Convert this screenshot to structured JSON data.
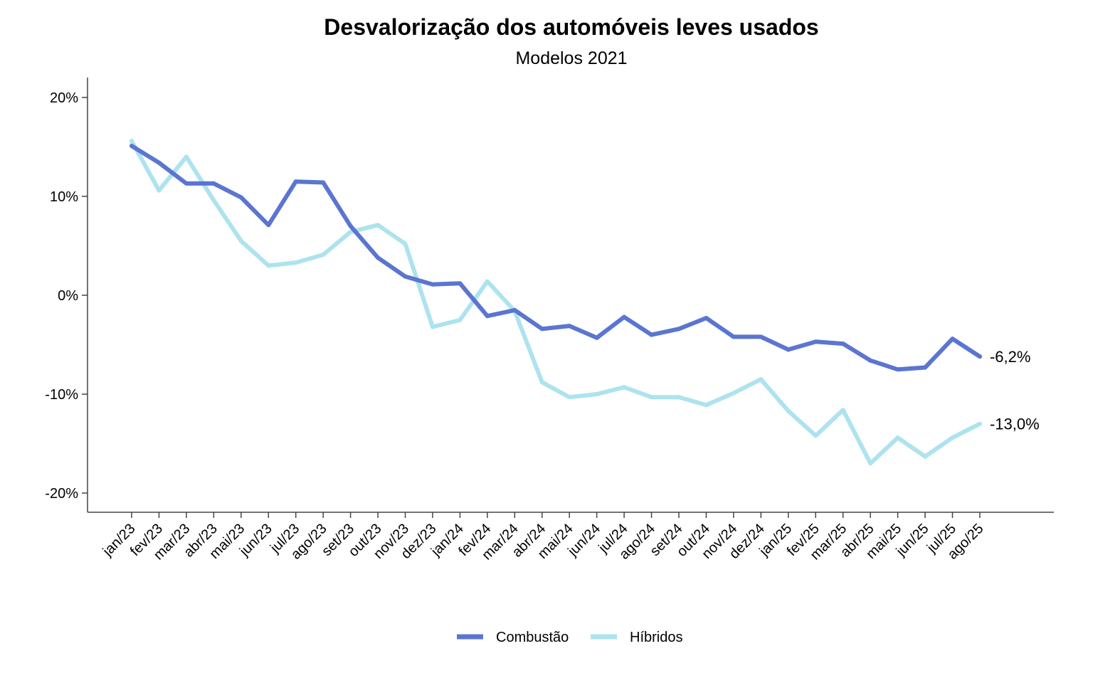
{
  "chart_data": {
    "type": "line",
    "title": "Desvalorização dos automóveis leves usados",
    "subtitle": "Modelos 2021",
    "xlabel": "",
    "ylabel": "",
    "ylim": [
      -22,
      22
    ],
    "y_ticks": [
      20,
      10,
      0,
      -10,
      -20
    ],
    "y_tick_labels": [
      "20%",
      "10%",
      "0%",
      "-10%",
      "-20%"
    ],
    "grid": false,
    "legend_position": "bottom-center",
    "categories": [
      "jan/23",
      "fev/23",
      "mar/23",
      "abr/23",
      "mai/23",
      "jun/23",
      "jul/23",
      "ago/23",
      "set/23",
      "out/23",
      "nov/23",
      "dez/23",
      "jan/24",
      "fev/24",
      "mar/24",
      "abr/24",
      "mai/24",
      "jun/24",
      "jul/24",
      "ago/24",
      "set/24",
      "out/24",
      "nov/24",
      "dez/24",
      "jan/25",
      "fev/25",
      "mar/25",
      "abr/25",
      "mai/25",
      "jun/25",
      "jul/25",
      "ago/25"
    ],
    "series": [
      {
        "name": "Combustão",
        "color": "#5B75D0",
        "end_label": "-6,2%",
        "values": [
          15.1,
          13.4,
          11.3,
          11.3,
          9.9,
          7.1,
          11.5,
          11.4,
          7.0,
          3.8,
          1.9,
          1.1,
          1.2,
          -2.1,
          -1.5,
          -3.4,
          -3.1,
          -4.3,
          -2.2,
          -4.0,
          -3.4,
          -2.3,
          -4.2,
          -4.2,
          -5.5,
          -4.7,
          -4.9,
          -6.6,
          -7.5,
          -7.3,
          -4.4,
          -6.2
        ]
      },
      {
        "name": "Híbridos",
        "color": "#ADE3EE",
        "end_label": "-13,0%",
        "values": [
          15.6,
          10.6,
          14.0,
          9.6,
          5.5,
          3.0,
          3.3,
          4.1,
          6.4,
          7.1,
          5.2,
          -3.2,
          -2.5,
          1.4,
          -1.6,
          -8.8,
          -10.3,
          -10.0,
          -9.3,
          -10.3,
          -10.3,
          -11.1,
          -9.9,
          -8.5,
          -11.7,
          -14.2,
          -11.6,
          -17.0,
          -14.4,
          -16.3,
          -14.4,
          -13.0
        ]
      }
    ]
  }
}
